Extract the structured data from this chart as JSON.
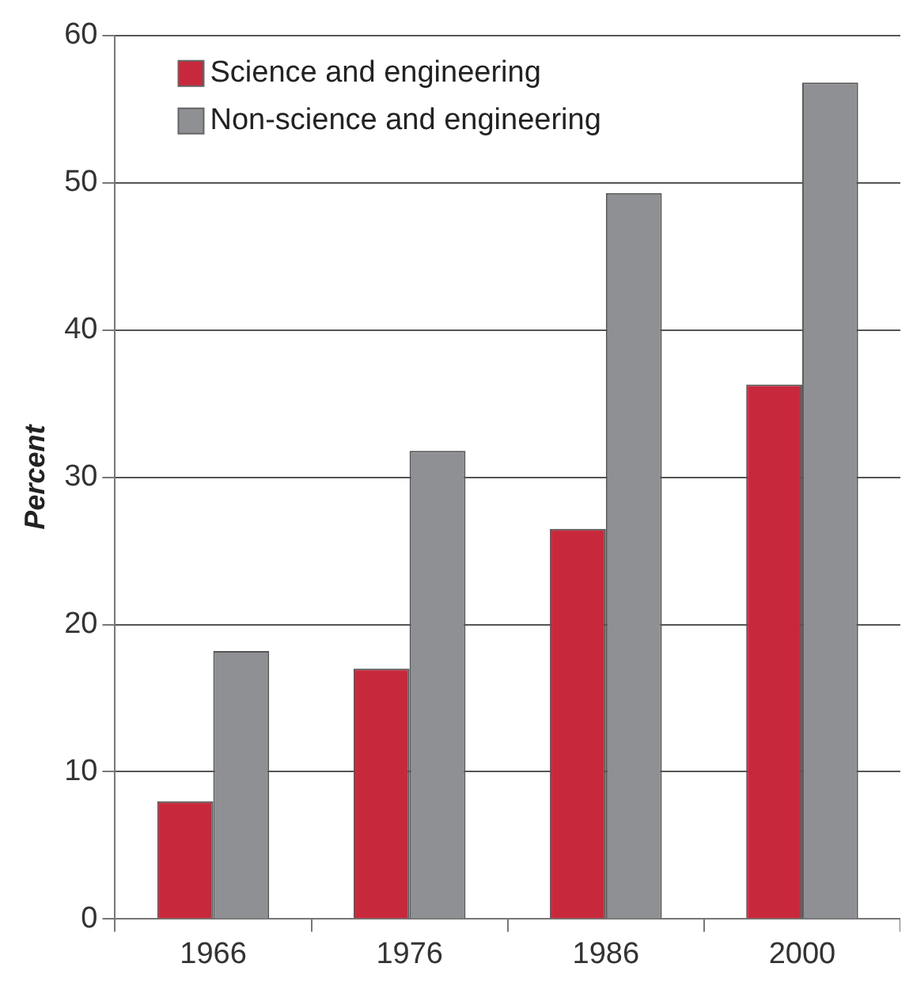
{
  "chart_data": {
    "type": "bar",
    "ylabel": "Percent",
    "categories": [
      "1966",
      "1976",
      "1986",
      "2000"
    ],
    "series": [
      {
        "name": "Science and engineering",
        "color": "#c8283c",
        "values": [
          8,
          17,
          26.5,
          36.3
        ]
      },
      {
        "name": "Non-science and engineering",
        "color": "#8e9094",
        "values": [
          18.2,
          31.8,
          49.3,
          56.8
        ]
      }
    ],
    "ylim": [
      0,
      60
    ],
    "yticks": [
      0,
      10,
      20,
      30,
      40,
      50,
      60
    ],
    "grid": "y",
    "legend": "top left"
  }
}
